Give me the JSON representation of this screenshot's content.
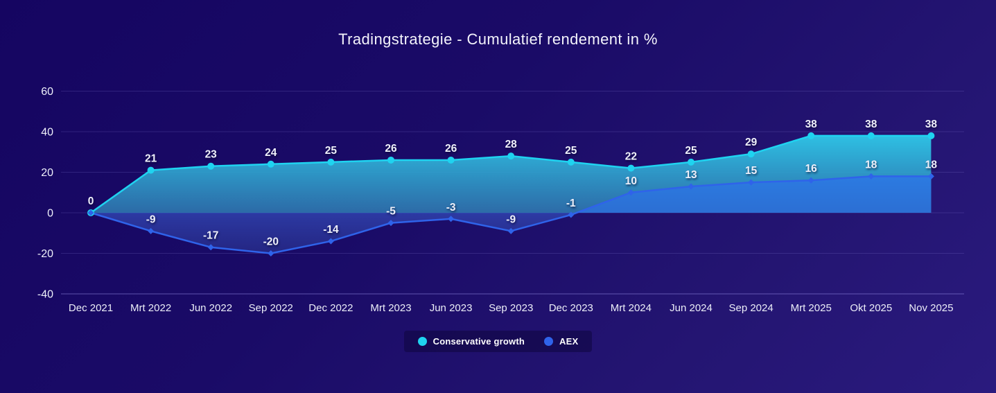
{
  "page": {
    "background_top_left": "#150561",
    "background_bottom_right": "#2a1a7e"
  },
  "chart_data": {
    "type": "area",
    "title": "Tradingstrategie - Cumulatief rendement in %",
    "categories": [
      "Dec 2021",
      "Mrt 2022",
      "Jun 2022",
      "Sep 2022",
      "Dec 2022",
      "Mrt 2023",
      "Jun 2023",
      "Sep 2023",
      "Dec 2023",
      "Mrt 2024",
      "Jun 2024",
      "Sep 2024",
      "Mrt 2025",
      "Okt 2025",
      "Nov 2025"
    ],
    "series": [
      {
        "name": "Conservative growth",
        "color": "#1fd3f0",
        "marker": "circle",
        "values": [
          0,
          21,
          23,
          24,
          25,
          26,
          26,
          28,
          25,
          22,
          25,
          29,
          38,
          38,
          38
        ]
      },
      {
        "name": "AEX",
        "color": "#2f63ea",
        "marker": "diamond",
        "values": [
          0,
          -9,
          -17,
          -20,
          -14,
          -5,
          -3,
          -9,
          -1,
          10,
          13,
          15,
          16,
          18,
          18
        ]
      }
    ],
    "yticks": [
      60,
      40,
      20,
      0,
      -20,
      -40
    ],
    "ylim": [
      -45,
      63
    ],
    "grid": true,
    "legend_position": "bottom",
    "fill_colors": {
      "conservative_growth_top": "#2fc9e9",
      "conservative_growth_bottom": "#2f78b0",
      "aex_positive": "#2c7ae2",
      "aex_negative": "#3042ae"
    }
  }
}
